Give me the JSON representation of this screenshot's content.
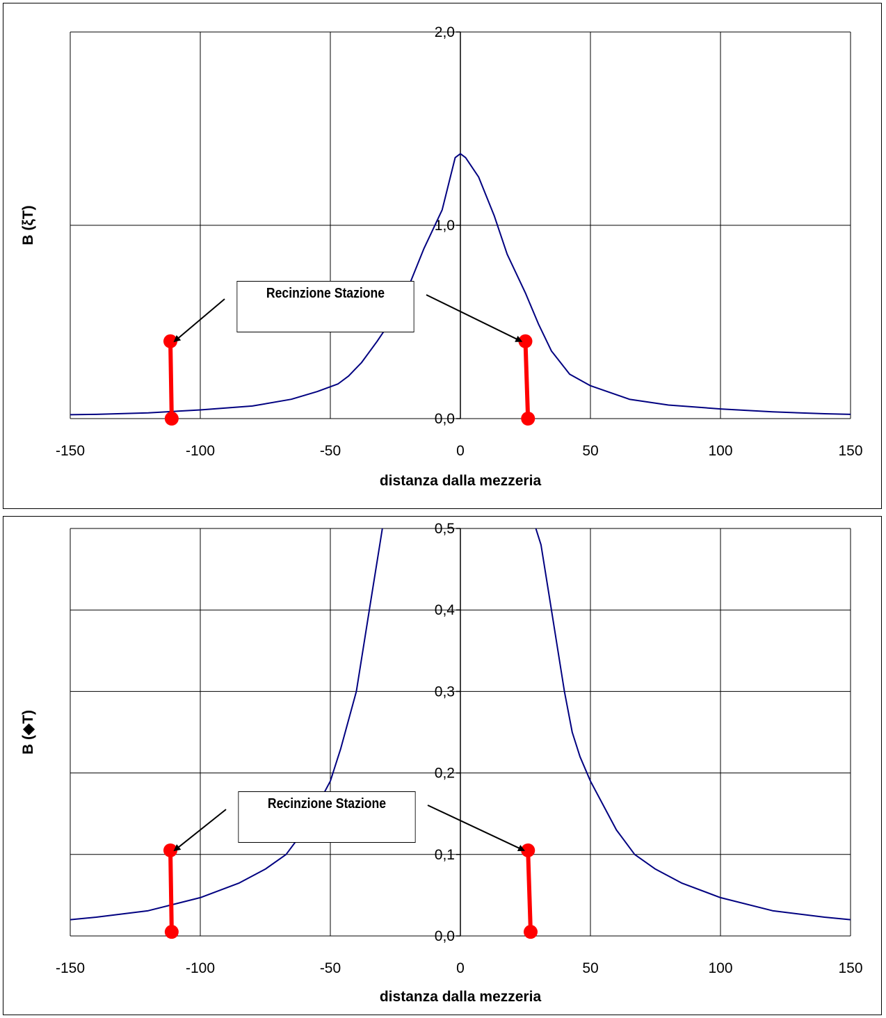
{
  "chart_data": [
    {
      "type": "line",
      "xlabel": "distanza dalla mezzeria",
      "ylabel": "B (ξT)",
      "xlim": [
        -150,
        150
      ],
      "ylim": [
        0,
        2
      ],
      "x_ticks": [
        "-150",
        "-100",
        "-50",
        "0",
        "50",
        "100",
        "150"
      ],
      "y_ticks": [
        "0,0",
        "1,0",
        "2,0"
      ],
      "y_tick_values": [
        0,
        1,
        2
      ],
      "grid": true,
      "series": [
        {
          "color": "#000080",
          "points": [
            [
              -150,
              0.02
            ],
            [
              -140,
              0.022
            ],
            [
              -120,
              0.03
            ],
            [
              -100,
              0.045
            ],
            [
              -80,
              0.065
            ],
            [
              -65,
              0.1
            ],
            [
              -55,
              0.14
            ],
            [
              -47,
              0.18
            ],
            [
              -43,
              0.22
            ],
            [
              -38,
              0.29
            ],
            [
              -32,
              0.4
            ],
            [
              -26,
              0.52
            ],
            [
              -20,
              0.68
            ],
            [
              -14,
              0.88
            ],
            [
              -7,
              1.08
            ],
            [
              -2,
              1.35
            ],
            [
              0,
              1.37
            ],
            [
              2,
              1.35
            ],
            [
              7,
              1.25
            ],
            [
              13,
              1.05
            ],
            [
              18,
              0.85
            ],
            [
              25,
              0.65
            ],
            [
              30,
              0.49
            ],
            [
              35,
              0.35
            ],
            [
              42,
              0.23
            ],
            [
              50,
              0.17
            ],
            [
              65,
              0.1
            ],
            [
              80,
              0.07
            ],
            [
              100,
              0.05
            ],
            [
              120,
              0.035
            ],
            [
              140,
              0.025
            ],
            [
              150,
              0.022
            ]
          ]
        },
        {
          "color": "#ff0000",
          "points": [
            [
              -111.5,
              0.4
            ],
            [
              -111,
              0.0
            ]
          ]
        },
        {
          "color": "#ff0000",
          "points": [
            [
              25,
              0.4
            ],
            [
              26,
              0.0
            ]
          ]
        }
      ],
      "callout": {
        "text": "Recinzione Stazione",
        "targets": [
          [
            -111.5,
            0.4
          ],
          [
            25,
            0.4
          ]
        ]
      }
    },
    {
      "type": "line",
      "xlabel": "distanza dalla mezzeria",
      "ylabel": "B (◆T)",
      "xlim": [
        -150,
        150
      ],
      "ylim": [
        0,
        0.5
      ],
      "x_ticks": [
        "-150",
        "-100",
        "-50",
        "0",
        "50",
        "100",
        "150"
      ],
      "y_ticks": [
        "0,0",
        "0,1",
        "0,2",
        "0,3",
        "0,4",
        "0,5"
      ],
      "y_tick_values": [
        0,
        0.1,
        0.2,
        0.3,
        0.4,
        0.5
      ],
      "grid": true,
      "series": [
        {
          "color": "#000080",
          "points": [
            [
              -150,
              0.02
            ],
            [
              -140,
              0.023
            ],
            [
              -120,
              0.031
            ],
            [
              -100,
              0.047
            ],
            [
              -85,
              0.065
            ],
            [
              -75,
              0.082
            ],
            [
              -67,
              0.1
            ],
            [
              -60,
              0.13
            ],
            [
              -55,
              0.16
            ],
            [
              -50,
              0.19
            ],
            [
              -46,
              0.23
            ],
            [
              -40,
              0.3
            ],
            [
              -37,
              0.36
            ],
            [
              -34,
              0.42
            ],
            [
              -31,
              0.48
            ],
            [
              -30,
              0.5
            ]
          ]
        },
        {
          "color": "#000080",
          "points": [
            [
              29,
              0.5
            ],
            [
              31,
              0.48
            ],
            [
              34,
              0.42
            ],
            [
              37,
              0.36
            ],
            [
              40,
              0.3
            ],
            [
              43,
              0.25
            ],
            [
              46,
              0.22
            ],
            [
              50,
              0.19
            ],
            [
              55,
              0.16
            ],
            [
              60,
              0.13
            ],
            [
              67,
              0.1
            ],
            [
              75,
              0.082
            ],
            [
              85,
              0.065
            ],
            [
              100,
              0.047
            ],
            [
              120,
              0.031
            ],
            [
              140,
              0.023
            ],
            [
              150,
              0.02
            ]
          ]
        },
        {
          "color": "#ff0000",
          "points": [
            [
              -111.5,
              0.105
            ],
            [
              -111,
              0.005
            ]
          ]
        },
        {
          "color": "#ff0000",
          "points": [
            [
              26,
              0.105
            ],
            [
              27,
              0.005
            ]
          ]
        }
      ],
      "callout": {
        "text": "Recinzione Stazione",
        "targets": [
          [
            -111.5,
            0.105
          ],
          [
            26,
            0.105
          ]
        ]
      }
    }
  ]
}
